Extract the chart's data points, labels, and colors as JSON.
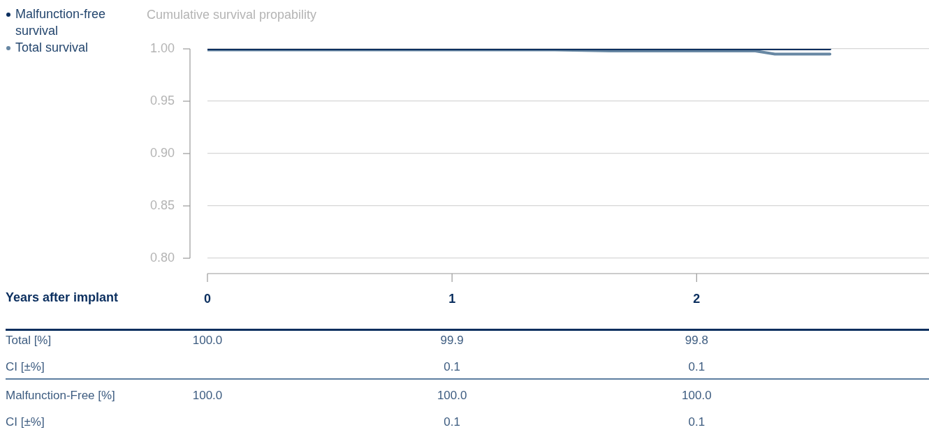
{
  "chart_data": {
    "type": "line",
    "ylabel": "Cumulative survival propability",
    "xlabel": "Years after implant",
    "xlim": [
      0,
      2.95
    ],
    "xticks": [
      0,
      1,
      2
    ],
    "ylim": [
      0.8,
      1.0
    ],
    "yticks": [
      {
        "value": 0.8,
        "label": "0.80"
      },
      {
        "value": 0.85,
        "label": "0.85"
      },
      {
        "value": 0.9,
        "label": "0.90"
      },
      {
        "value": 0.95,
        "label": "0.95"
      },
      {
        "value": 1.0,
        "label": "1.00"
      }
    ],
    "grid": "y",
    "legend": "top left",
    "marker": "none",
    "line_style": "solid",
    "series": [
      {
        "name": "Malfunction-free survival",
        "color": "#0b2f5f",
        "x": [
          0,
          2.545
        ],
        "values": [
          1.0,
          1.0
        ]
      },
      {
        "name": "Total survival",
        "color": "#6787a3",
        "x": [
          0,
          1.42,
          1.65,
          2.24,
          2.32,
          2.545
        ],
        "values": [
          0.999,
          0.999,
          0.998,
          0.998,
          0.995,
          0.995
        ]
      }
    ],
    "annotations": [
      "Total [%]",
      "100.0",
      "99.9",
      "99.8",
      "CI [±%]",
      "0.1",
      "0.1",
      "Malfunction-Free [%]",
      "100.0",
      "100.0",
      "100.0",
      "CI [±%]",
      "0.1",
      "0.1"
    ]
  }
}
